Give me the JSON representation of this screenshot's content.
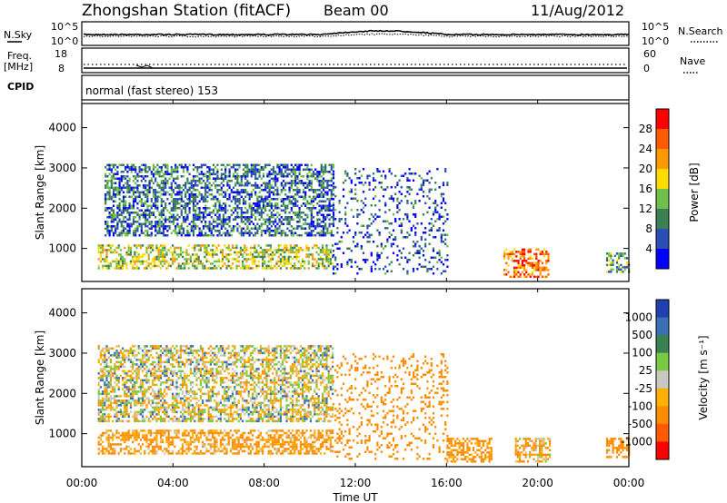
{
  "header": {
    "station": "Zhongshan Station (fitACF)",
    "beam": "Beam 00",
    "date": "11/Aug/2012"
  },
  "top_panels": {
    "nsky": {
      "label": "N.Sky",
      "tick_top": "10^5",
      "tick_bottom": "10^0"
    },
    "nsearch": {
      "label": "N.Search",
      "tick_top": "10^5",
      "tick_bottom": "10^0"
    },
    "freq": {
      "label_line1": "Freq.",
      "label_line2": "[MHz]",
      "tick_top": "18",
      "tick_bottom": "8"
    },
    "nave": {
      "label": "Nave",
      "tick_top": "60",
      "tick_bottom": "0"
    },
    "cpid": {
      "label": "CPID",
      "value": "normal (fast stereo) 153"
    }
  },
  "power_panel": {
    "ylabel": "Slant Range [km]",
    "yticks": [
      "1000",
      "2000",
      "3000",
      "4000"
    ],
    "colorbar_label": "Power [dB]",
    "colorbar_ticks": [
      "4",
      "8",
      "12",
      "16",
      "20",
      "24",
      "28"
    ],
    "colors": [
      "#0000ff",
      "#2b4fb4",
      "#3a8050",
      "#6fc04a",
      "#ffdd00",
      "#ff9900",
      "#ff5a00",
      "#ff0000"
    ]
  },
  "velocity_panel": {
    "ylabel": "Slant Range [km]",
    "yticks": [
      "1000",
      "2000",
      "3000",
      "4000"
    ],
    "colorbar_label": "Velocity [m s⁻¹]",
    "colorbar_ticks": [
      "1000",
      "500",
      "100",
      "25",
      "-25",
      "-100",
      "-500",
      "-1000"
    ],
    "colors": [
      "#2040b0",
      "#3a6fb4",
      "#3a8050",
      "#7ac943",
      "#c8c8c0",
      "#ffb000",
      "#ff8c00",
      "#ff5a00",
      "#ff0000"
    ]
  },
  "xaxis": {
    "label": "Time UT",
    "ticks": [
      "00:00",
      "04:00",
      "08:00",
      "12:00",
      "16:00",
      "20:00",
      "00:00"
    ]
  },
  "chart_data": [
    {
      "type": "heatmap",
      "title": "Power",
      "xlabel": "Time UT",
      "ylabel": "Slant Range [km]",
      "xlim": [
        "00:00",
        "24:00"
      ],
      "ylim": [
        180,
        4600
      ],
      "zlabel": "Power [dB]",
      "zlim": [
        0,
        32
      ],
      "regions": [
        {
          "t_start": 0.7,
          "t_end": 11.0,
          "range_km": [
            500,
            1100
          ],
          "power_db": 16
        },
        {
          "t_start": 1.0,
          "t_end": 11.0,
          "range_km": [
            1300,
            3100
          ],
          "power_db": 8
        },
        {
          "t_start": 11.0,
          "t_end": 16.0,
          "range_km": [
            400,
            3000
          ],
          "power_db": 6
        },
        {
          "t_start": 18.5,
          "t_end": 20.5,
          "range_km": [
            300,
            1000
          ],
          "power_db": 24
        },
        {
          "t_start": 23.0,
          "t_end": 24.0,
          "range_km": [
            400,
            900
          ],
          "power_db": 12
        }
      ]
    },
    {
      "type": "heatmap",
      "title": "Velocity",
      "xlabel": "Time UT",
      "ylabel": "Slant Range [km]",
      "xlim": [
        "00:00",
        "24:00"
      ],
      "ylim": [
        180,
        4600
      ],
      "zlabel": "Velocity [m s-1]",
      "zlim": [
        -1000,
        1000
      ],
      "regions": [
        {
          "t_start": 0.7,
          "t_end": 11.0,
          "range_km": [
            1300,
            3200
          ],
          "velocity": 0
        },
        {
          "t_start": 0.7,
          "t_end": 11.0,
          "range_km": [
            500,
            1100
          ],
          "velocity": -150
        },
        {
          "t_start": 11.0,
          "t_end": 16.0,
          "range_km": [
            400,
            3000
          ],
          "velocity": -300
        },
        {
          "t_start": 16.0,
          "t_end": 18.0,
          "range_km": [
            300,
            900
          ],
          "velocity": -200
        },
        {
          "t_start": 19.0,
          "t_end": 20.5,
          "range_km": [
            300,
            900
          ],
          "velocity": -100
        },
        {
          "t_start": 23.0,
          "t_end": 24.0,
          "range_km": [
            400,
            900
          ],
          "velocity": -300
        }
      ]
    }
  ]
}
